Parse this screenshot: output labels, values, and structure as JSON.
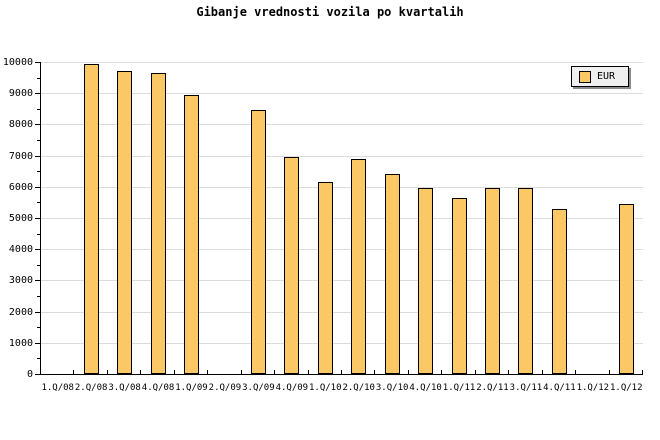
{
  "title": "Gibanje vrednosti vozila po kvartalih",
  "legend": {
    "label": "EUR",
    "position": "top-right"
  },
  "colors": {
    "background": "#FFFFFF",
    "bar_fill": "#FCC866",
    "bar_border": "#000000",
    "gridline": "#DCDCDC",
    "axis": "#000000",
    "text": "#000000",
    "legend_background": "#F0F0F0",
    "legend_shadow": "#8C8C8C"
  },
  "chart_data": {
    "type": "bar",
    "title": "Gibanje vrednosti vozila po kvartalih",
    "categories": [
      "1.Q/08",
      "2.Q/08",
      "3.Q/08",
      "4.Q/08",
      "1.Q/09",
      "2.Q/09",
      "3.Q/09",
      "4.Q/09",
      "1.Q/10",
      "2.Q/10",
      "3.Q/10",
      "4.Q/10",
      "1.Q/11",
      "2.Q/11",
      "3.Q/11",
      "4.Q/11",
      "1.Q/12",
      "1.Q/12"
    ],
    "series": [
      {
        "name": "EUR",
        "values": [
          null,
          9950,
          9700,
          9650,
          8950,
          null,
          8450,
          6950,
          6150,
          6900,
          6400,
          5950,
          5650,
          5950,
          5950,
          5300,
          null,
          5450
        ]
      }
    ],
    "xlabel": "",
    "ylabel": "",
    "ylim": [
      0,
      10000
    ],
    "ytick_interval": 1000,
    "ytick_minor_interval": 500,
    "yticks": [
      0,
      1000,
      2000,
      3000,
      4000,
      5000,
      6000,
      7000,
      8000,
      9000,
      10000
    ],
    "grid": "horizontal",
    "legend_position": "top-right"
  }
}
